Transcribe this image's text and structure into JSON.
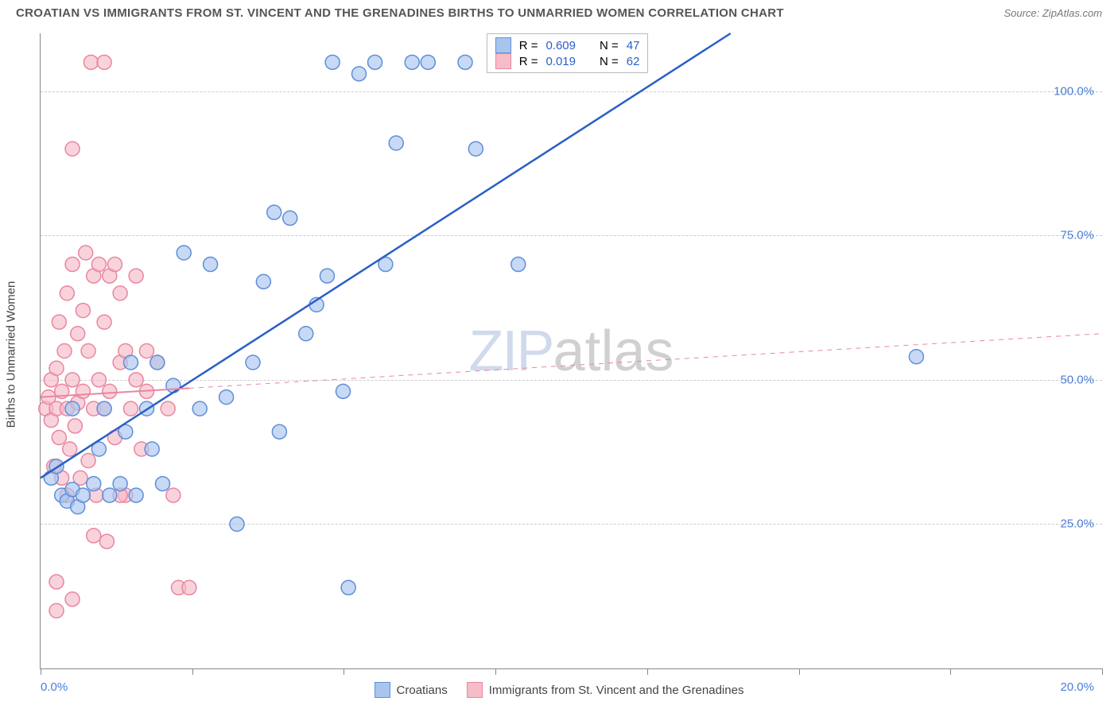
{
  "title": "CROATIAN VS IMMIGRANTS FROM ST. VINCENT AND THE GRENADINES BIRTHS TO UNMARRIED WOMEN CORRELATION CHART",
  "source": "Source: ZipAtlas.com",
  "ylabel": "Births to Unmarried Women",
  "watermark_left": "ZIP",
  "watermark_right": "atlas",
  "chart": {
    "type": "scatter",
    "xlim": [
      0,
      20
    ],
    "ylim": [
      0,
      110
    ],
    "x_axis_min_label": "0.0%",
    "x_axis_max_label": "20.0%",
    "x_tick_positions": [
      0,
      2.86,
      5.71,
      8.57,
      11.43,
      14.29,
      17.14,
      20
    ],
    "y_gridlines": [
      25,
      50,
      75,
      100
    ],
    "y_tick_labels": [
      "25.0%",
      "50.0%",
      "75.0%",
      "100.0%"
    ],
    "y_tick_color": "#4a7dd8",
    "x_label_color": "#4a7dd8",
    "grid_color": "#cccccc",
    "background_color": "#ffffff",
    "series": [
      {
        "name": "Croatians",
        "marker_fill": "#a9c5ee",
        "marker_stroke": "#5f8fd9",
        "marker_opacity": 0.65,
        "marker_radius": 9,
        "trend_color": "#2b5fc7",
        "trend_width": 2.5,
        "trend_dash": "none",
        "trend": {
          "x1": 0,
          "y1": 33,
          "x2": 13,
          "y2": 110
        },
        "r": "0.609",
        "n": "47",
        "points": [
          [
            0.2,
            33
          ],
          [
            0.3,
            35
          ],
          [
            0.4,
            30
          ],
          [
            0.5,
            29
          ],
          [
            0.6,
            31
          ],
          [
            0.6,
            45
          ],
          [
            0.7,
            28
          ],
          [
            0.8,
            30
          ],
          [
            1.0,
            32
          ],
          [
            1.1,
            38
          ],
          [
            1.2,
            45
          ],
          [
            1.3,
            30
          ],
          [
            1.5,
            32
          ],
          [
            1.6,
            41
          ],
          [
            1.7,
            53
          ],
          [
            1.8,
            30
          ],
          [
            2.0,
            45
          ],
          [
            2.1,
            38
          ],
          [
            2.2,
            53
          ],
          [
            2.3,
            32
          ],
          [
            2.5,
            49
          ],
          [
            2.7,
            72
          ],
          [
            3.0,
            45
          ],
          [
            3.2,
            70
          ],
          [
            3.5,
            47
          ],
          [
            3.7,
            25
          ],
          [
            4.0,
            53
          ],
          [
            4.2,
            67
          ],
          [
            4.4,
            79
          ],
          [
            4.5,
            41
          ],
          [
            4.7,
            78
          ],
          [
            5.0,
            58
          ],
          [
            5.2,
            63
          ],
          [
            5.4,
            68
          ],
          [
            5.5,
            105
          ],
          [
            5.7,
            48
          ],
          [
            5.8,
            14
          ],
          [
            6.0,
            103
          ],
          [
            6.3,
            105
          ],
          [
            6.5,
            70
          ],
          [
            6.7,
            91
          ],
          [
            7.0,
            105
          ],
          [
            7.3,
            105
          ],
          [
            8.0,
            105
          ],
          [
            8.2,
            90
          ],
          [
            9.0,
            70
          ],
          [
            16.5,
            54
          ]
        ]
      },
      {
        "name": "Immigrants from St. Vincent and the Grenadines",
        "marker_fill": "#f6bcc8",
        "marker_stroke": "#e986a0",
        "marker_opacity": 0.65,
        "marker_radius": 9,
        "trend_color": "#e986a0",
        "trend_width": 2,
        "trend_dash": "6 6",
        "trend": {
          "x1": 0,
          "y1": 47,
          "x2": 20,
          "y2": 58
        },
        "trend_solid_until_x": 2.8,
        "r": "0.019",
        "n": "62",
        "points": [
          [
            0.1,
            45
          ],
          [
            0.15,
            47
          ],
          [
            0.2,
            43
          ],
          [
            0.2,
            50
          ],
          [
            0.25,
            35
          ],
          [
            0.3,
            45
          ],
          [
            0.3,
            52
          ],
          [
            0.35,
            40
          ],
          [
            0.35,
            60
          ],
          [
            0.4,
            33
          ],
          [
            0.4,
            48
          ],
          [
            0.45,
            55
          ],
          [
            0.5,
            30
          ],
          [
            0.5,
            45
          ],
          [
            0.5,
            65
          ],
          [
            0.55,
            38
          ],
          [
            0.6,
            50
          ],
          [
            0.6,
            70
          ],
          [
            0.65,
            42
          ],
          [
            0.7,
            46
          ],
          [
            0.7,
            58
          ],
          [
            0.75,
            33
          ],
          [
            0.8,
            48
          ],
          [
            0.8,
            62
          ],
          [
            0.85,
            72
          ],
          [
            0.9,
            36
          ],
          [
            0.9,
            55
          ],
          [
            0.95,
            105
          ],
          [
            1.0,
            45
          ],
          [
            1.0,
            68
          ],
          [
            1.05,
            30
          ],
          [
            1.1,
            70
          ],
          [
            1.1,
            50
          ],
          [
            1.2,
            105
          ],
          [
            1.2,
            60
          ],
          [
            1.25,
            22
          ],
          [
            1.3,
            68
          ],
          [
            1.3,
            48
          ],
          [
            1.4,
            40
          ],
          [
            1.4,
            70
          ],
          [
            1.5,
            53
          ],
          [
            1.5,
            65
          ],
          [
            1.6,
            30
          ],
          [
            1.6,
            55
          ],
          [
            1.7,
            45
          ],
          [
            1.8,
            68
          ],
          [
            1.8,
            50
          ],
          [
            1.9,
            38
          ],
          [
            2.0,
            55
          ],
          [
            2.0,
            48
          ],
          [
            2.2,
            53
          ],
          [
            2.4,
            45
          ],
          [
            0.3,
            15
          ],
          [
            0.3,
            10
          ],
          [
            0.6,
            90
          ],
          [
            0.6,
            12
          ],
          [
            1.0,
            23
          ],
          [
            2.6,
            14
          ],
          [
            2.8,
            14
          ],
          [
            2.5,
            30
          ],
          [
            1.5,
            30
          ],
          [
            1.2,
            45
          ]
        ]
      }
    ],
    "legend_box": {
      "r_label": "R =",
      "n_label": "N =",
      "value_color": "#2b5fc7",
      "text_color": "#444444"
    }
  },
  "bottom_legend": {
    "items": [
      {
        "label": "Croatians",
        "fill": "#a9c5ee",
        "stroke": "#5f8fd9"
      },
      {
        "label": "Immigrants from St. Vincent and the Grenadines",
        "fill": "#f6bcc8",
        "stroke": "#e986a0"
      }
    ]
  }
}
